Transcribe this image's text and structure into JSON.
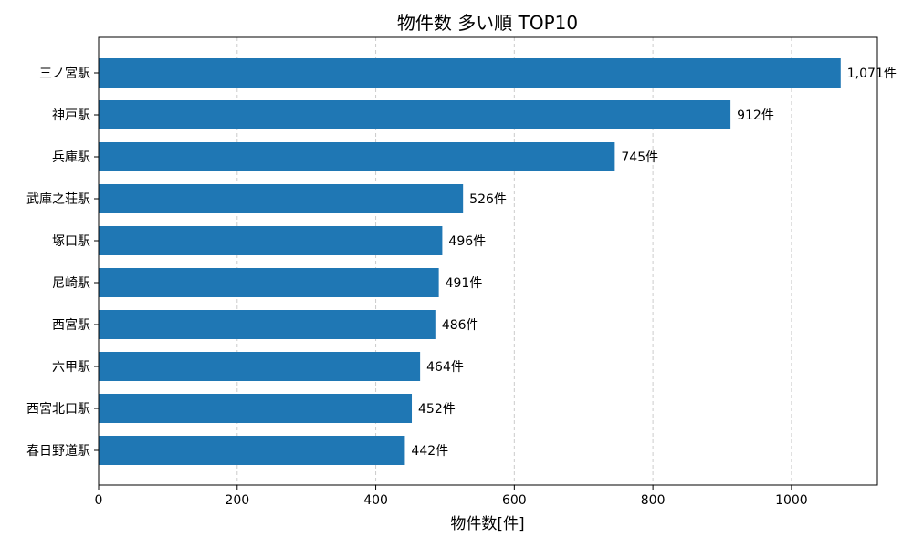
{
  "chart_data": {
    "type": "bar",
    "orientation": "horizontal",
    "title": "物件数 多い順 TOP10",
    "xlabel": "物件数[件]",
    "ylabel": "",
    "xlim": [
      0,
      1124
    ],
    "xticks": [
      0,
      200,
      400,
      600,
      800,
      1000
    ],
    "grid": "x-dashed",
    "bar_color": "#1f77b4",
    "categories": [
      "三ノ宮駅",
      "神戸駅",
      "兵庫駅",
      "武庫之荘駅",
      "塚口駅",
      "尼崎駅",
      "西宮駅",
      "六甲駅",
      "西宮北口駅",
      "春日野道駅"
    ],
    "values": [
      1071,
      912,
      745,
      526,
      496,
      491,
      486,
      464,
      452,
      442
    ],
    "data_labels": [
      "1,071件",
      "912件",
      "745件",
      "526件",
      "496件",
      "491件",
      "486件",
      "464件",
      "452件",
      "442件"
    ]
  }
}
